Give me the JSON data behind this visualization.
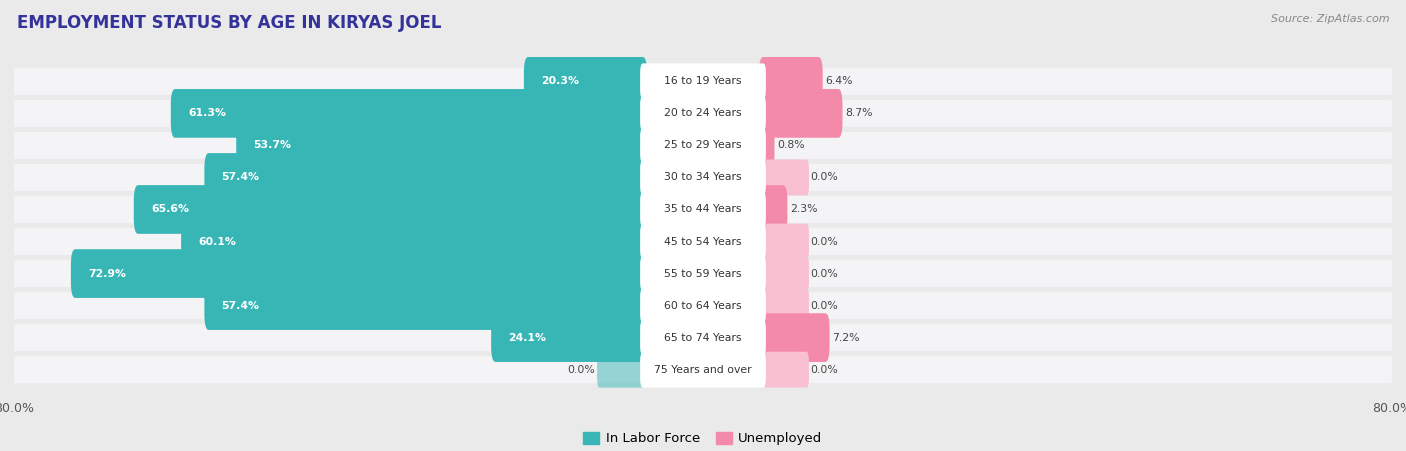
{
  "title": "EMPLOYMENT STATUS BY AGE IN KIRYAS JOEL",
  "source": "Source: ZipAtlas.com",
  "categories": [
    "16 to 19 Years",
    "20 to 24 Years",
    "25 to 29 Years",
    "30 to 34 Years",
    "35 to 44 Years",
    "45 to 54 Years",
    "55 to 59 Years",
    "60 to 64 Years",
    "65 to 74 Years",
    "75 Years and over"
  ],
  "labor_force": [
    20.3,
    61.3,
    53.7,
    57.4,
    65.6,
    60.1,
    72.9,
    57.4,
    24.1,
    0.0
  ],
  "unemployed": [
    6.4,
    8.7,
    0.8,
    0.0,
    2.3,
    0.0,
    0.0,
    0.0,
    7.2,
    0.0
  ],
  "labor_force_color": "#38b6b6",
  "unemployed_color": "#f48aaa",
  "unemployed_color_light": "#f8c0d0",
  "background_color": "#eaeaea",
  "row_color": "#f4f4f6",
  "axis_limit": 80.0,
  "legend_labor_force": "In Labor Force",
  "legend_unemployed": "Unemployed",
  "label_min_inside": 10.0,
  "zero_stub": 5.0
}
